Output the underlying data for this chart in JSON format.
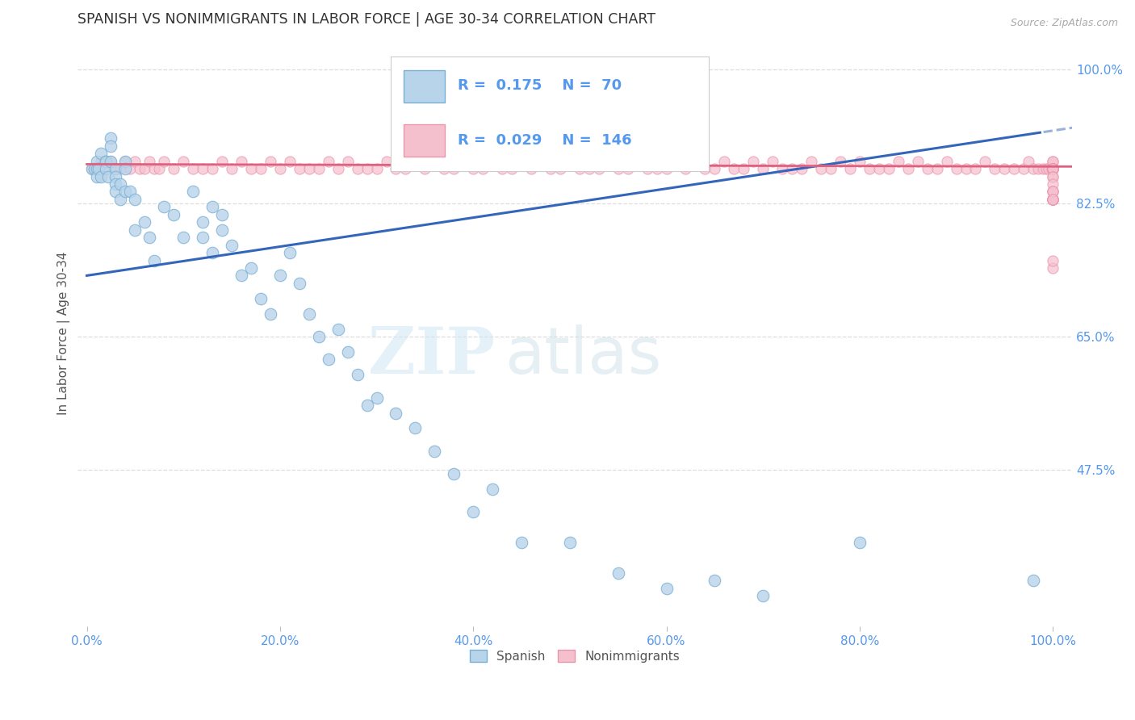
{
  "title": "SPANISH VS NONIMMIGRANTS IN LABOR FORCE | AGE 30-34 CORRELATION CHART",
  "source": "Source: ZipAtlas.com",
  "ylabel": "In Labor Force | Age 30-34",
  "xlim": [
    -0.01,
    1.02
  ],
  "ylim": [
    0.27,
    1.04
  ],
  "yticks": [
    0.475,
    0.65,
    0.825,
    1.0
  ],
  "ytick_labels": [
    "47.5%",
    "65.0%",
    "82.5%",
    "100.0%"
  ],
  "xticks": [
    0.0,
    0.2,
    0.4,
    0.6,
    0.8,
    1.0
  ],
  "xtick_labels": [
    "0.0%",
    "20.0%",
    "40.0%",
    "60.0%",
    "80.0%",
    "100.0%"
  ],
  "legend_r_spanish": "0.175",
  "legend_n_spanish": "70",
  "legend_r_nonimm": "0.029",
  "legend_n_nonimm": "146",
  "spanish_color": "#b8d4ea",
  "spanish_edge": "#7aafd4",
  "nonimm_color": "#f5c0ce",
  "nonimm_edge": "#eb94ab",
  "trend_spanish_color": "#3366bb",
  "trend_nonimm_color": "#e06080",
  "watermark_zip": "ZIP",
  "watermark_atlas": "atlas",
  "background_color": "#ffffff",
  "grid_color": "#dddddd",
  "title_color": "#333333",
  "axis_label_color": "#555555",
  "tick_color": "#5599ee",
  "source_color": "#aaaaaa",
  "spanish_x": [
    0.005,
    0.008,
    0.01,
    0.01,
    0.01,
    0.012,
    0.015,
    0.015,
    0.02,
    0.02,
    0.02,
    0.022,
    0.025,
    0.025,
    0.025,
    0.03,
    0.03,
    0.03,
    0.03,
    0.035,
    0.035,
    0.04,
    0.04,
    0.04,
    0.045,
    0.05,
    0.05,
    0.06,
    0.065,
    0.07,
    0.08,
    0.09,
    0.1,
    0.11,
    0.12,
    0.12,
    0.13,
    0.13,
    0.14,
    0.14,
    0.15,
    0.16,
    0.17,
    0.18,
    0.19,
    0.2,
    0.21,
    0.22,
    0.23,
    0.24,
    0.25,
    0.26,
    0.27,
    0.28,
    0.29,
    0.3,
    0.32,
    0.34,
    0.36,
    0.38,
    0.4,
    0.42,
    0.45,
    0.5,
    0.55,
    0.6,
    0.65,
    0.7,
    0.8,
    0.98
  ],
  "spanish_y": [
    0.87,
    0.87,
    0.88,
    0.87,
    0.86,
    0.87,
    0.89,
    0.86,
    0.88,
    0.88,
    0.87,
    0.86,
    0.91,
    0.9,
    0.88,
    0.87,
    0.86,
    0.85,
    0.84,
    0.85,
    0.83,
    0.88,
    0.87,
    0.84,
    0.84,
    0.83,
    0.79,
    0.8,
    0.78,
    0.75,
    0.82,
    0.81,
    0.78,
    0.84,
    0.8,
    0.78,
    0.82,
    0.76,
    0.81,
    0.79,
    0.77,
    0.73,
    0.74,
    0.7,
    0.68,
    0.73,
    0.76,
    0.72,
    0.68,
    0.65,
    0.62,
    0.66,
    0.63,
    0.6,
    0.56,
    0.57,
    0.55,
    0.53,
    0.5,
    0.47,
    0.42,
    0.45,
    0.38,
    0.38,
    0.34,
    0.32,
    0.33,
    0.31,
    0.38,
    0.33
  ],
  "nonimm_x": [
    0.005,
    0.01,
    0.015,
    0.02,
    0.025,
    0.03,
    0.035,
    0.04,
    0.045,
    0.05,
    0.055,
    0.06,
    0.065,
    0.07,
    0.075,
    0.08,
    0.09,
    0.1,
    0.11,
    0.12,
    0.13,
    0.14,
    0.15,
    0.16,
    0.17,
    0.18,
    0.19,
    0.2,
    0.21,
    0.22,
    0.23,
    0.24,
    0.25,
    0.26,
    0.27,
    0.28,
    0.29,
    0.3,
    0.31,
    0.32,
    0.33,
    0.34,
    0.35,
    0.36,
    0.37,
    0.38,
    0.39,
    0.4,
    0.41,
    0.42,
    0.43,
    0.44,
    0.45,
    0.46,
    0.47,
    0.48,
    0.49,
    0.5,
    0.51,
    0.52,
    0.53,
    0.54,
    0.55,
    0.56,
    0.57,
    0.58,
    0.59,
    0.6,
    0.61,
    0.62,
    0.63,
    0.64,
    0.65,
    0.66,
    0.67,
    0.68,
    0.69,
    0.7,
    0.71,
    0.72,
    0.73,
    0.74,
    0.75,
    0.76,
    0.77,
    0.78,
    0.79,
    0.8,
    0.81,
    0.82,
    0.83,
    0.84,
    0.85,
    0.86,
    0.87,
    0.88,
    0.89,
    0.9,
    0.91,
    0.92,
    0.93,
    0.94,
    0.95,
    0.96,
    0.97,
    0.975,
    0.98,
    0.985,
    0.99,
    0.993,
    0.996,
    0.999,
    1.0,
    1.0,
    1.0,
    1.0,
    1.0,
    1.0,
    1.0,
    1.0,
    1.0,
    1.0,
    1.0,
    1.0,
    1.0,
    1.0,
    1.0,
    1.0,
    1.0,
    1.0,
    1.0,
    1.0,
    1.0,
    1.0,
    1.0,
    1.0,
    1.0,
    1.0,
    1.0,
    1.0,
    1.0,
    1.0,
    1.0
  ],
  "nonimm_y": [
    0.87,
    0.87,
    0.88,
    0.87,
    0.88,
    0.87,
    0.87,
    0.88,
    0.87,
    0.88,
    0.87,
    0.87,
    0.88,
    0.87,
    0.87,
    0.88,
    0.87,
    0.88,
    0.87,
    0.87,
    0.87,
    0.88,
    0.87,
    0.88,
    0.87,
    0.87,
    0.88,
    0.87,
    0.88,
    0.87,
    0.87,
    0.87,
    0.88,
    0.87,
    0.88,
    0.87,
    0.87,
    0.87,
    0.88,
    0.87,
    0.87,
    0.88,
    0.87,
    0.88,
    0.87,
    0.87,
    0.88,
    0.87,
    0.87,
    0.88,
    0.87,
    0.87,
    0.88,
    0.87,
    0.88,
    0.87,
    0.87,
    0.88,
    0.87,
    0.87,
    0.87,
    0.88,
    0.87,
    0.87,
    0.88,
    0.87,
    0.87,
    0.87,
    0.88,
    0.87,
    0.88,
    0.87,
    0.87,
    0.88,
    0.87,
    0.87,
    0.88,
    0.87,
    0.88,
    0.87,
    0.87,
    0.87,
    0.88,
    0.87,
    0.87,
    0.88,
    0.87,
    0.88,
    0.87,
    0.87,
    0.87,
    0.88,
    0.87,
    0.88,
    0.87,
    0.87,
    0.88,
    0.87,
    0.87,
    0.87,
    0.88,
    0.87,
    0.87,
    0.87,
    0.87,
    0.88,
    0.87,
    0.87,
    0.87,
    0.87,
    0.87,
    0.87,
    0.87,
    0.88,
    0.87,
    0.87,
    0.87,
    0.88,
    0.87,
    0.87,
    0.87,
    0.87,
    0.87,
    0.87,
    0.87,
    0.87,
    0.87,
    0.87,
    0.86,
    0.86,
    0.85,
    0.84,
    0.83,
    0.83,
    0.83,
    0.84,
    0.83,
    0.83,
    0.83,
    0.84,
    0.83,
    0.74,
    0.75
  ]
}
